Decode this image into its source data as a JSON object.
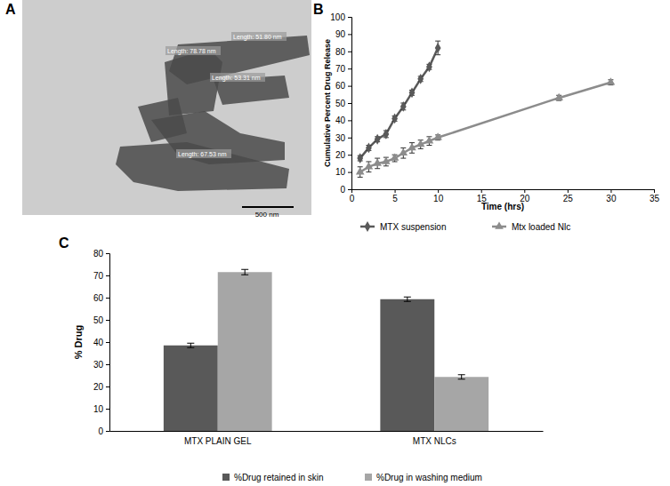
{
  "chart_data": [
    {
      "type": "image",
      "title": "A",
      "annotations": [
        "Length: 51.80 nm",
        "Length: 78.78 nm",
        "Length: 53.31 nm",
        "Length: 67.53 nm",
        "500 nm"
      ]
    },
    {
      "type": "line",
      "title": "B",
      "x_label": "Time (hrs)",
      "y_label": "Cumulative Percent Drug Release",
      "xlim": [
        0,
        35
      ],
      "xticks": [
        0,
        5,
        10,
        15,
        20,
        25,
        30,
        35
      ],
      "ylim": [
        0,
        100
      ],
      "yticks": [
        0,
        10,
        20,
        30,
        40,
        50,
        60,
        70,
        80,
        90,
        100
      ],
      "legend": "bottom",
      "series": [
        {
          "name": "MTX suspension",
          "color": "#595959",
          "marker": "diamond",
          "x": [
            1,
            2,
            3,
            4,
            5,
            6,
            7,
            8,
            9,
            10
          ],
          "values": [
            18,
            24,
            29,
            32,
            41,
            48,
            56,
            64,
            71,
            82
          ],
          "errors": [
            1.5,
            1.5,
            1.5,
            2,
            1.5,
            2,
            1.5,
            1.5,
            1.5,
            4
          ]
        },
        {
          "name": "Mtx loaded Nlc",
          "color": "#8c8c8c",
          "marker": "triangle",
          "x": [
            1,
            2,
            3,
            4,
            5,
            6,
            7,
            8,
            9,
            10,
            24,
            30
          ],
          "values": [
            10,
            13,
            15,
            16,
            18,
            21,
            24,
            26,
            28,
            30,
            53,
            62
          ],
          "errors": [
            3,
            3,
            3,
            2.5,
            2,
            3,
            3,
            2.5,
            2.5,
            1.5,
            1.5,
            1.5
          ]
        }
      ]
    },
    {
      "type": "bar",
      "title": "C",
      "y_label": "% Drug",
      "categories": [
        "MTX PLAIN GEL",
        "MTX NLCs"
      ],
      "ylim": [
        0,
        80
      ],
      "yticks": [
        0,
        10,
        20,
        30,
        40,
        50,
        60,
        70,
        80
      ],
      "legend": "bottom",
      "series": [
        {
          "name": "%Drug retained in skin",
          "color": "#595959",
          "values": [
            38.5,
            59.3
          ],
          "errors": [
            1,
            1
          ]
        },
        {
          "name": "%Drug in washing medium",
          "color": "#a6a6a6",
          "values": [
            71.5,
            24.3
          ],
          "errors": [
            1.2,
            1
          ]
        }
      ]
    }
  ]
}
